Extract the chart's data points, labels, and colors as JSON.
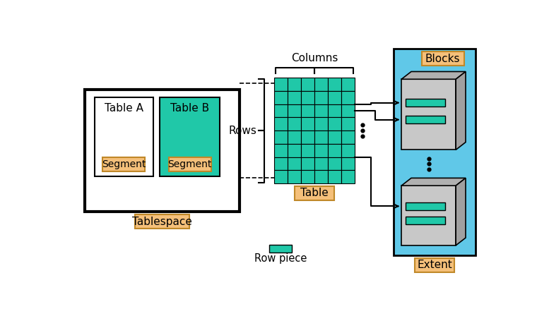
{
  "bg_color": "#ffffff",
  "teal": "#20C8A8",
  "orange_fill": "#F5C07A",
  "orange_edge": "#C08828",
  "gray_fill": "#C8C8C8",
  "gray_side": "#A0A0A0",
  "gray_top": "#B0B0B0",
  "blue_extent": "#60C8E8",
  "black": "#000000",
  "white": "#ffffff",
  "label_tablespace": "Tablespace",
  "label_table_a": "Table A",
  "label_table_b": "Table B",
  "label_segment": "Segment",
  "label_table": "Table",
  "label_columns": "Columns",
  "label_rows": "Rows",
  "label_blocks": "Blocks",
  "label_extent": "Extent",
  "label_row_piece": "Row piece"
}
